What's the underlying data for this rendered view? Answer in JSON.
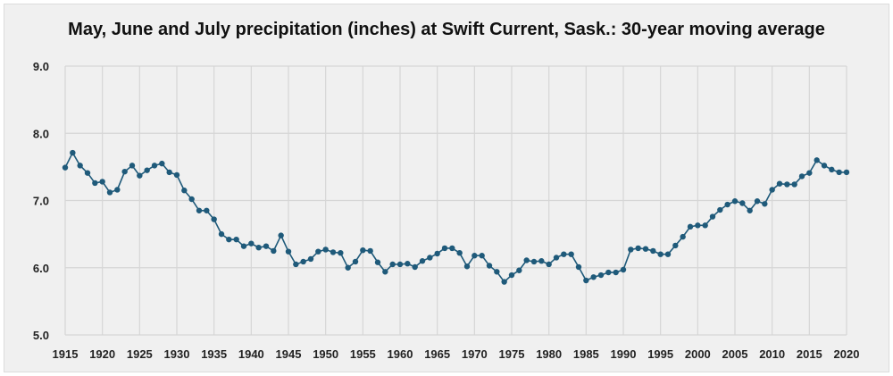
{
  "chart_data": {
    "type": "line",
    "title": "May, June and July precipitation (inches) at Swift Current, Sask.: 30-year moving average",
    "xlabel": "",
    "ylabel": "",
    "xlim": [
      1915,
      2020
    ],
    "ylim": [
      5.0,
      9.0
    ],
    "x_ticks": [
      "1915",
      "1920",
      "1925",
      "1930",
      "1935",
      "1940",
      "1945",
      "1950",
      "1955",
      "1960",
      "1965",
      "1970",
      "1975",
      "1980",
      "1985",
      "1990",
      "1995",
      "2000",
      "2005",
      "2010",
      "2015",
      "2020"
    ],
    "y_ticks": [
      "5.0",
      "6.0",
      "7.0",
      "8.0",
      "9.0"
    ],
    "grid": true,
    "color": "#1f5a7a",
    "series": [
      {
        "name": "30-year moving average",
        "x_start": 1915,
        "values": [
          7.49,
          7.71,
          7.52,
          7.41,
          7.26,
          7.28,
          7.12,
          7.16,
          7.43,
          7.52,
          7.37,
          7.45,
          7.52,
          7.55,
          7.42,
          7.38,
          7.15,
          7.02,
          6.85,
          6.85,
          6.72,
          6.5,
          6.42,
          6.42,
          6.32,
          6.36,
          6.3,
          6.32,
          6.25,
          6.48,
          6.24,
          6.05,
          6.09,
          6.13,
          6.24,
          6.27,
          6.23,
          6.22,
          6.0,
          6.09,
          6.26,
          6.25,
          6.08,
          5.94,
          6.05,
          6.05,
          6.06,
          6.01,
          6.1,
          6.15,
          6.21,
          6.29,
          6.29,
          6.22,
          6.02,
          6.18,
          6.18,
          6.03,
          5.94,
          5.79,
          5.89,
          5.96,
          6.11,
          6.09,
          6.1,
          6.05,
          6.15,
          6.2,
          6.2,
          6.01,
          5.81,
          5.86,
          5.89,
          5.93,
          5.93,
          5.97,
          6.27,
          6.29,
          6.28,
          6.25,
          6.2,
          6.2,
          6.33,
          6.46,
          6.61,
          6.63,
          6.63,
          6.76,
          6.86,
          6.94,
          6.99,
          6.96,
          6.85,
          6.99,
          6.95,
          7.16,
          7.25,
          7.24,
          7.24,
          7.36,
          7.41,
          7.6,
          7.52,
          7.46,
          7.42,
          7.42
        ]
      }
    ]
  }
}
